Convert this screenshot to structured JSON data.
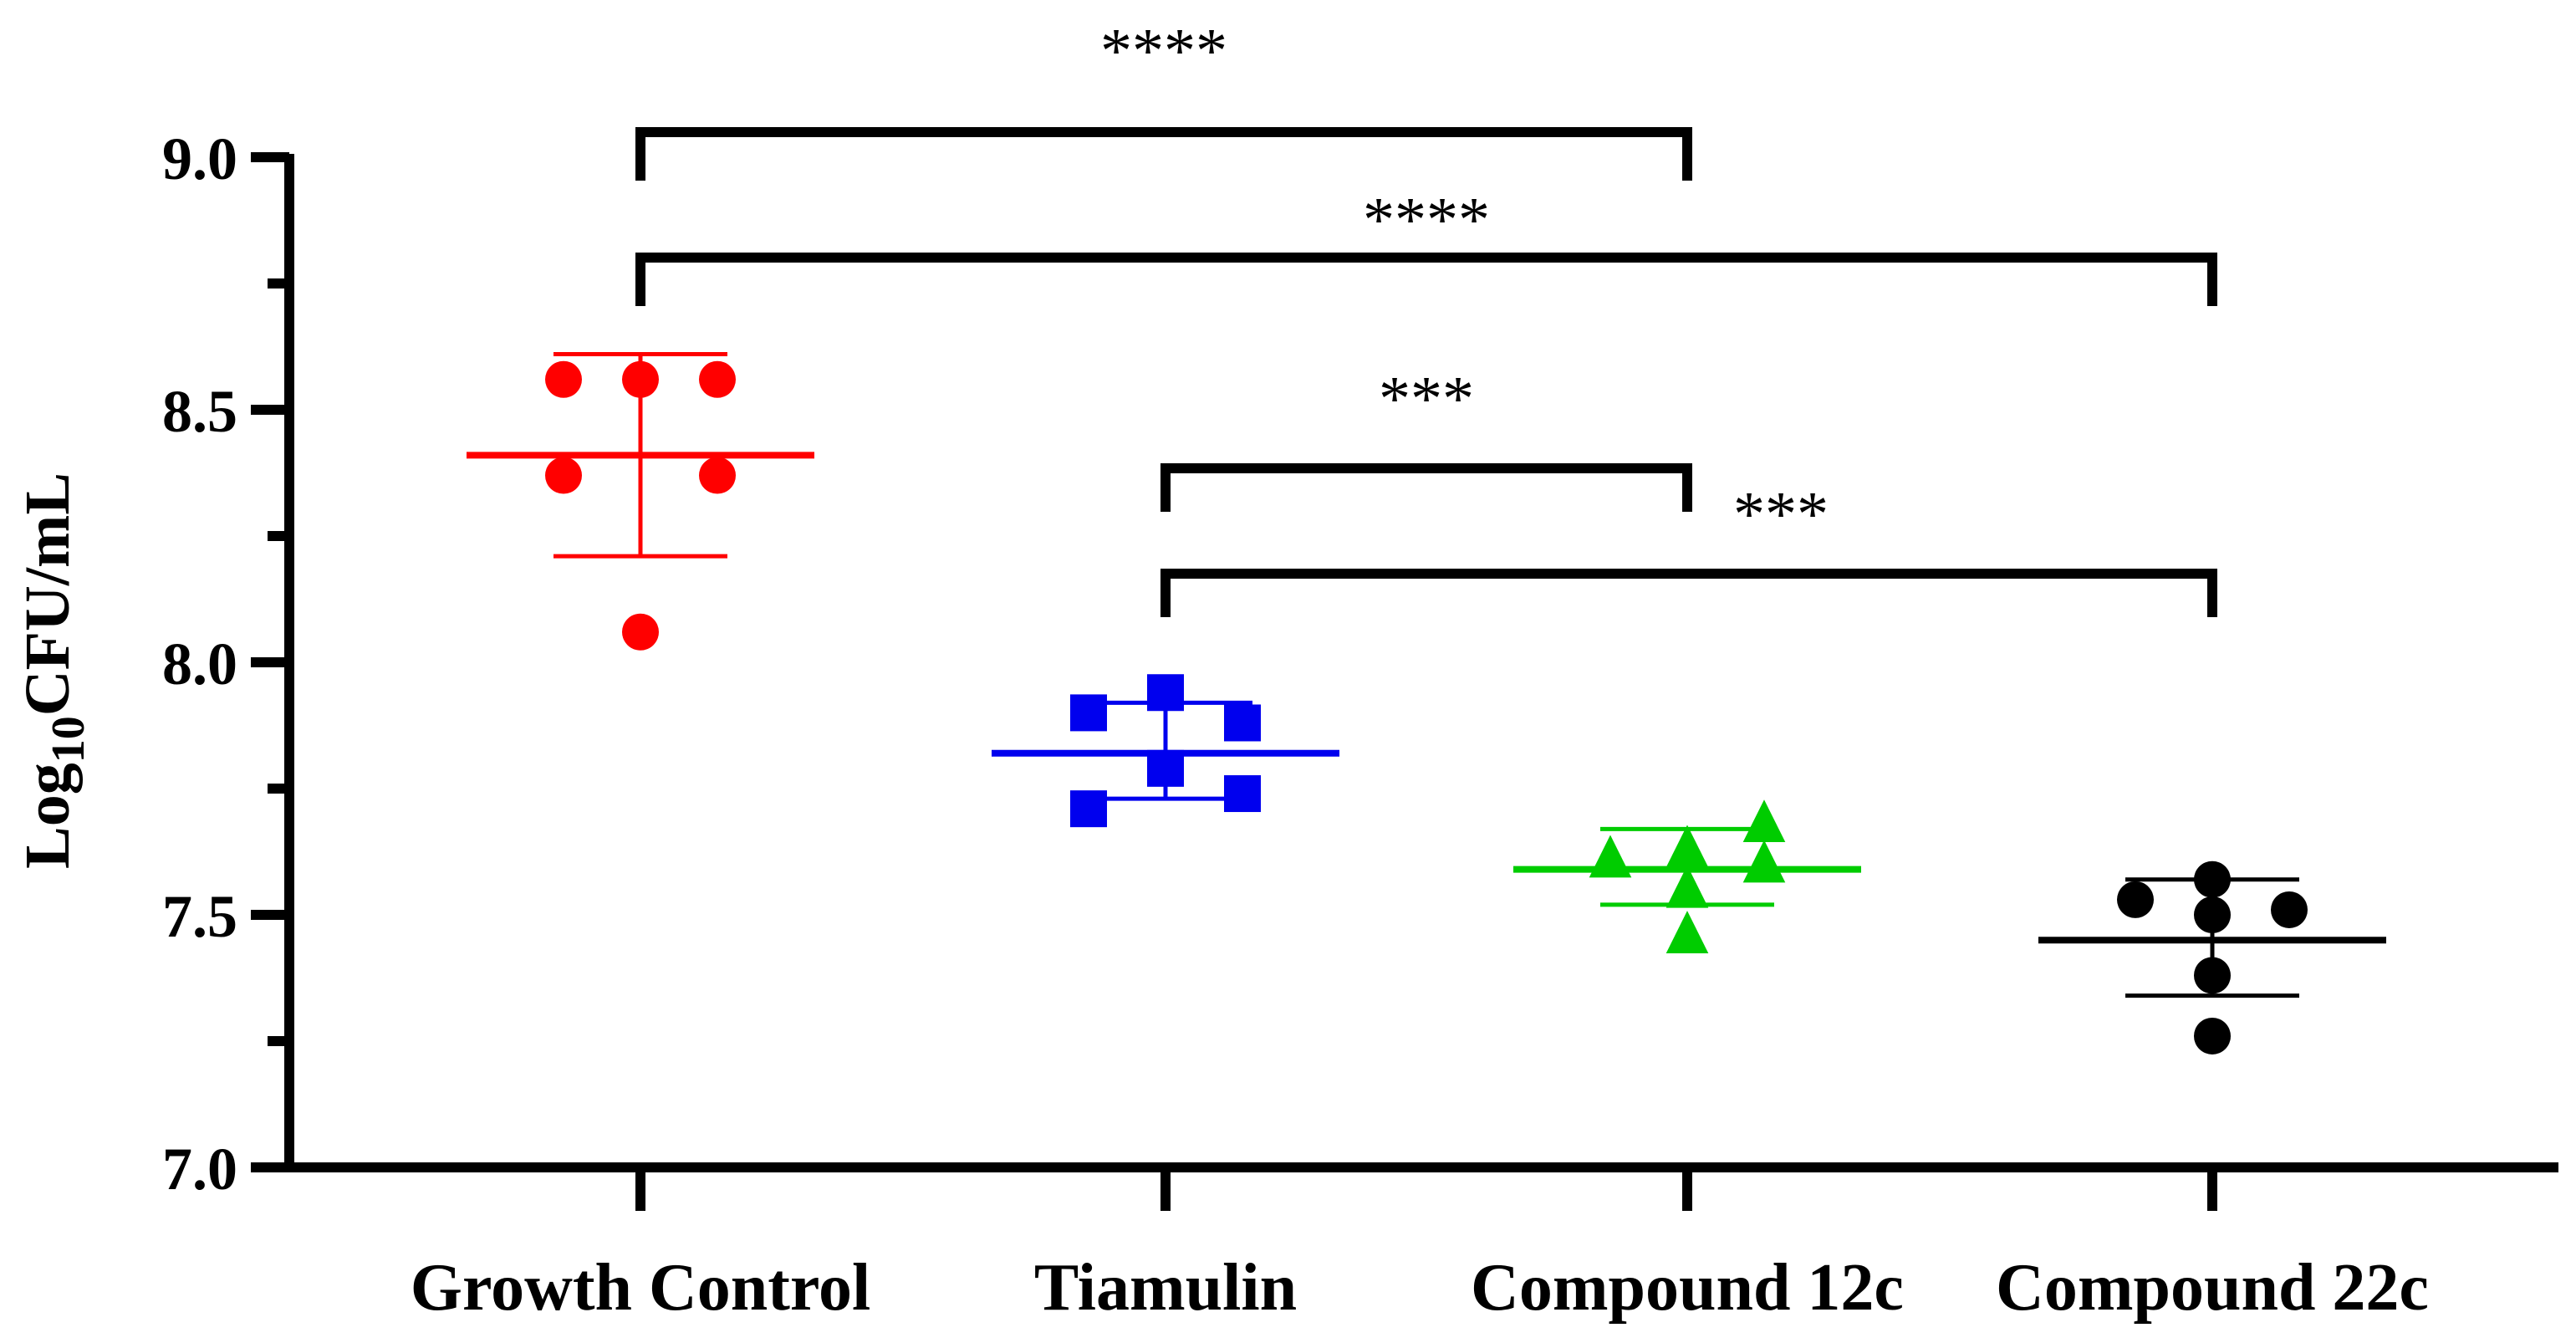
{
  "chart_data": {
    "type": "scatter",
    "title": "",
    "xlabel": "",
    "ylabel": {
      "prefix": "Log",
      "subscript": "10",
      "suffix": "CFU/mL"
    },
    "ylim": [
      7.0,
      9.0
    ],
    "yticks": [
      7.0,
      7.5,
      8.0,
      8.5,
      9.0
    ],
    "ytick_labels": [
      "7.0",
      "7.5",
      "8.0",
      "8.5",
      "9.0"
    ],
    "grid": false,
    "categories": [
      "Growth Control",
      "Tiamulin",
      "Compound 12c",
      "Compound 22c"
    ],
    "series": [
      {
        "name": "Growth Control",
        "color": "#ff0000",
        "marker": "circle",
        "points": [
          {
            "offset": -1,
            "value": 8.56
          },
          {
            "offset": 0,
            "value": 8.56
          },
          {
            "offset": 1,
            "value": 8.56
          },
          {
            "offset": -1,
            "value": 8.37
          },
          {
            "offset": 1,
            "value": 8.37
          },
          {
            "offset": 0,
            "value": 8.06
          }
        ],
        "mean": 8.41,
        "sd_low": 8.21,
        "sd_high": 8.61
      },
      {
        "name": "Tiamulin",
        "color": "#0000ee",
        "marker": "square",
        "points": [
          {
            "offset": -1,
            "value": 7.9
          },
          {
            "offset": 0,
            "value": 7.94
          },
          {
            "offset": 1,
            "value": 7.88
          },
          {
            "offset": 0,
            "value": 7.79
          },
          {
            "offset": -1,
            "value": 7.71
          },
          {
            "offset": 1,
            "value": 7.74
          }
        ],
        "mean": 7.82,
        "sd_low": 7.73,
        "sd_high": 7.92
      },
      {
        "name": "Compound 12c",
        "color": "#00cc00",
        "marker": "triangle",
        "points": [
          {
            "offset": -1,
            "value": 7.61
          },
          {
            "offset": 0,
            "value": 7.63
          },
          {
            "offset": 1,
            "value": 7.68
          },
          {
            "offset": 1,
            "value": 7.6
          },
          {
            "offset": 0,
            "value": 7.55
          },
          {
            "offset": 0,
            "value": 7.46
          }
        ],
        "mean": 7.59,
        "sd_low": 7.52,
        "sd_high": 7.67
      },
      {
        "name": "Compound 22c",
        "color": "#000000",
        "marker": "circle",
        "points": [
          {
            "offset": -1,
            "value": 7.53
          },
          {
            "offset": 0,
            "value": 7.57
          },
          {
            "offset": 1,
            "value": 7.51
          },
          {
            "offset": 0,
            "value": 7.5
          },
          {
            "offset": 0,
            "value": 7.38
          },
          {
            "offset": 0,
            "value": 7.26
          }
        ],
        "mean": 7.45,
        "sd_low": 7.34,
        "sd_high": 7.57
      }
    ],
    "significance": [
      {
        "from": 0,
        "to": 2,
        "label": "****",
        "level": 1
      },
      {
        "from": 0,
        "to": 3,
        "label": "****",
        "level": 2
      },
      {
        "from": 1,
        "to": 2,
        "label": "***",
        "level": 3
      },
      {
        "from": 1,
        "to": 3,
        "label": "***",
        "level": 4
      }
    ]
  }
}
